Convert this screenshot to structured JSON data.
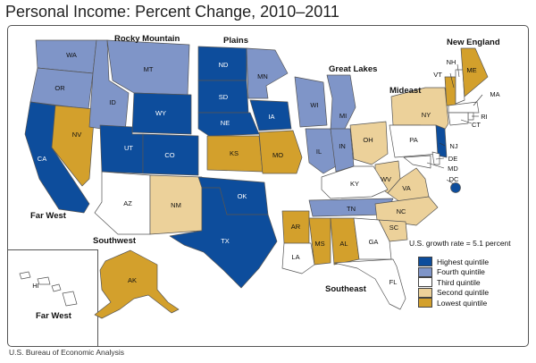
{
  "title": "Personal Income: Percent Change, 2010–2011",
  "source": "U.S. Bureau of Economic Analysis",
  "colors": {
    "highest": "#0d4d9c",
    "fourth": "#7f95c8",
    "third": "#ffffff",
    "second": "#ecd19a",
    "lowest": "#d3a02c",
    "border": "#555555"
  },
  "legend": {
    "note": "U.S. growth rate = 5.1 percent",
    "items": [
      {
        "key": "highest",
        "label": "Highest quintile"
      },
      {
        "key": "fourth",
        "label": "Fourth quintile"
      },
      {
        "key": "third",
        "label": "Third quintile"
      },
      {
        "key": "second",
        "label": "Second quintile"
      },
      {
        "key": "lowest",
        "label": "Lowest quintile"
      }
    ]
  },
  "regions": {
    "rocky_mountain": "Rocky Mountain",
    "plains": "Plains",
    "new_england": "New England",
    "great_lakes": "Great Lakes",
    "mideast": "Mideast",
    "far_west": "Far West",
    "far_west_inset": "Far West",
    "southwest": "Southwest",
    "southeast": "Southeast"
  },
  "states": {
    "WA": {
      "label": "WA",
      "quintile": "fourth"
    },
    "OR": {
      "label": "OR",
      "quintile": "fourth"
    },
    "CA": {
      "label": "CA",
      "quintile": "highest"
    },
    "NV": {
      "label": "NV",
      "quintile": "lowest"
    },
    "ID": {
      "label": "ID",
      "quintile": "fourth"
    },
    "MT": {
      "label": "MT",
      "quintile": "fourth"
    },
    "WY": {
      "label": "WY",
      "quintile": "highest"
    },
    "UT": {
      "label": "UT",
      "quintile": "highest"
    },
    "CO": {
      "label": "CO",
      "quintile": "highest"
    },
    "AZ": {
      "label": "AZ",
      "quintile": "third"
    },
    "NM": {
      "label": "NM",
      "quintile": "second"
    },
    "ND": {
      "label": "ND",
      "quintile": "highest"
    },
    "SD": {
      "label": "SD",
      "quintile": "highest"
    },
    "NE": {
      "label": "NE",
      "quintile": "highest"
    },
    "KS": {
      "label": "KS",
      "quintile": "lowest"
    },
    "MN": {
      "label": "MN",
      "quintile": "fourth"
    },
    "IA": {
      "label": "IA",
      "quintile": "highest"
    },
    "MO": {
      "label": "MO",
      "quintile": "lowest"
    },
    "OK": {
      "label": "OK",
      "quintile": "highest"
    },
    "TX": {
      "label": "TX",
      "quintile": "highest"
    },
    "WI": {
      "label": "WI",
      "quintile": "fourth"
    },
    "MI": {
      "label": "MI",
      "quintile": "fourth"
    },
    "IL": {
      "label": "IL",
      "quintile": "fourth"
    },
    "IN": {
      "label": "IN",
      "quintile": "fourth"
    },
    "OH": {
      "label": "OH",
      "quintile": "second"
    },
    "NY": {
      "label": "NY",
      "quintile": "second"
    },
    "PA": {
      "label": "PA",
      "quintile": "third"
    },
    "NJ": {
      "label": "NJ",
      "quintile": "highest"
    },
    "DE": {
      "label": "DE",
      "quintile": "third"
    },
    "MD": {
      "label": "MD",
      "quintile": "third"
    },
    "DC": {
      "label": "DC",
      "quintile": "highest"
    },
    "VT": {
      "label": "VT",
      "quintile": "lowest"
    },
    "NH": {
      "label": "NH",
      "quintile": "third"
    },
    "ME": {
      "label": "ME",
      "quintile": "lowest"
    },
    "MA": {
      "label": "MA",
      "quintile": "third"
    },
    "RI": {
      "label": "RI",
      "quintile": "third"
    },
    "CT": {
      "label": "CT",
      "quintile": "third"
    },
    "WV": {
      "label": "WV",
      "quintile": "second"
    },
    "VA": {
      "label": "VA",
      "quintile": "second"
    },
    "KY": {
      "label": "KY",
      "quintile": "third"
    },
    "TN": {
      "label": "TN",
      "quintile": "fourth"
    },
    "NC": {
      "label": "NC",
      "quintile": "second"
    },
    "SC": {
      "label": "SC",
      "quintile": "second"
    },
    "AR": {
      "label": "AR",
      "quintile": "lowest"
    },
    "LA": {
      "label": "LA",
      "quintile": "third"
    },
    "MS": {
      "label": "MS",
      "quintile": "lowest"
    },
    "AL": {
      "label": "AL",
      "quintile": "lowest"
    },
    "GA": {
      "label": "GA",
      "quintile": "third"
    },
    "FL": {
      "label": "FL",
      "quintile": "third"
    },
    "AK": {
      "label": "AK",
      "quintile": "lowest"
    },
    "HI": {
      "label": "HI",
      "quintile": "third"
    }
  }
}
